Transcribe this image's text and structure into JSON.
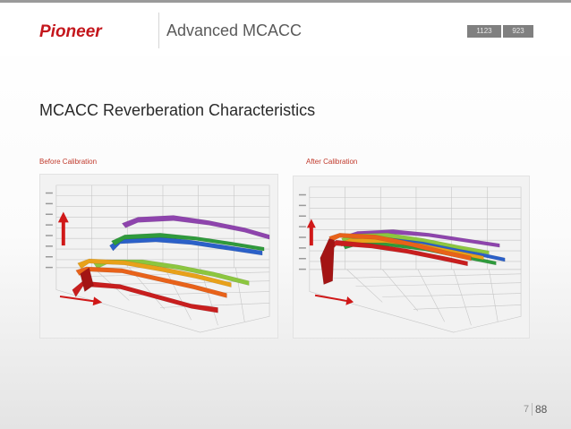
{
  "header": {
    "brand": "Pioneer",
    "title": "Advanced MCACC",
    "badges": [
      "1123",
      "923"
    ]
  },
  "section_title": "MCACC Reverberation Characteristics",
  "panels": [
    {
      "caption": "Before Calibration"
    },
    {
      "caption": "After Calibration"
    }
  ],
  "footer": {
    "page": "7",
    "total": "88"
  },
  "colors": {
    "brand_red": "#c4161c",
    "caption_red": "#c0392b",
    "badge_grey": "#808080",
    "series": [
      "#8e44ad",
      "#2b60c8",
      "#2f9a3c",
      "#8cc63f",
      "#e8a11a",
      "#e8621a",
      "#c81e1e"
    ]
  }
}
